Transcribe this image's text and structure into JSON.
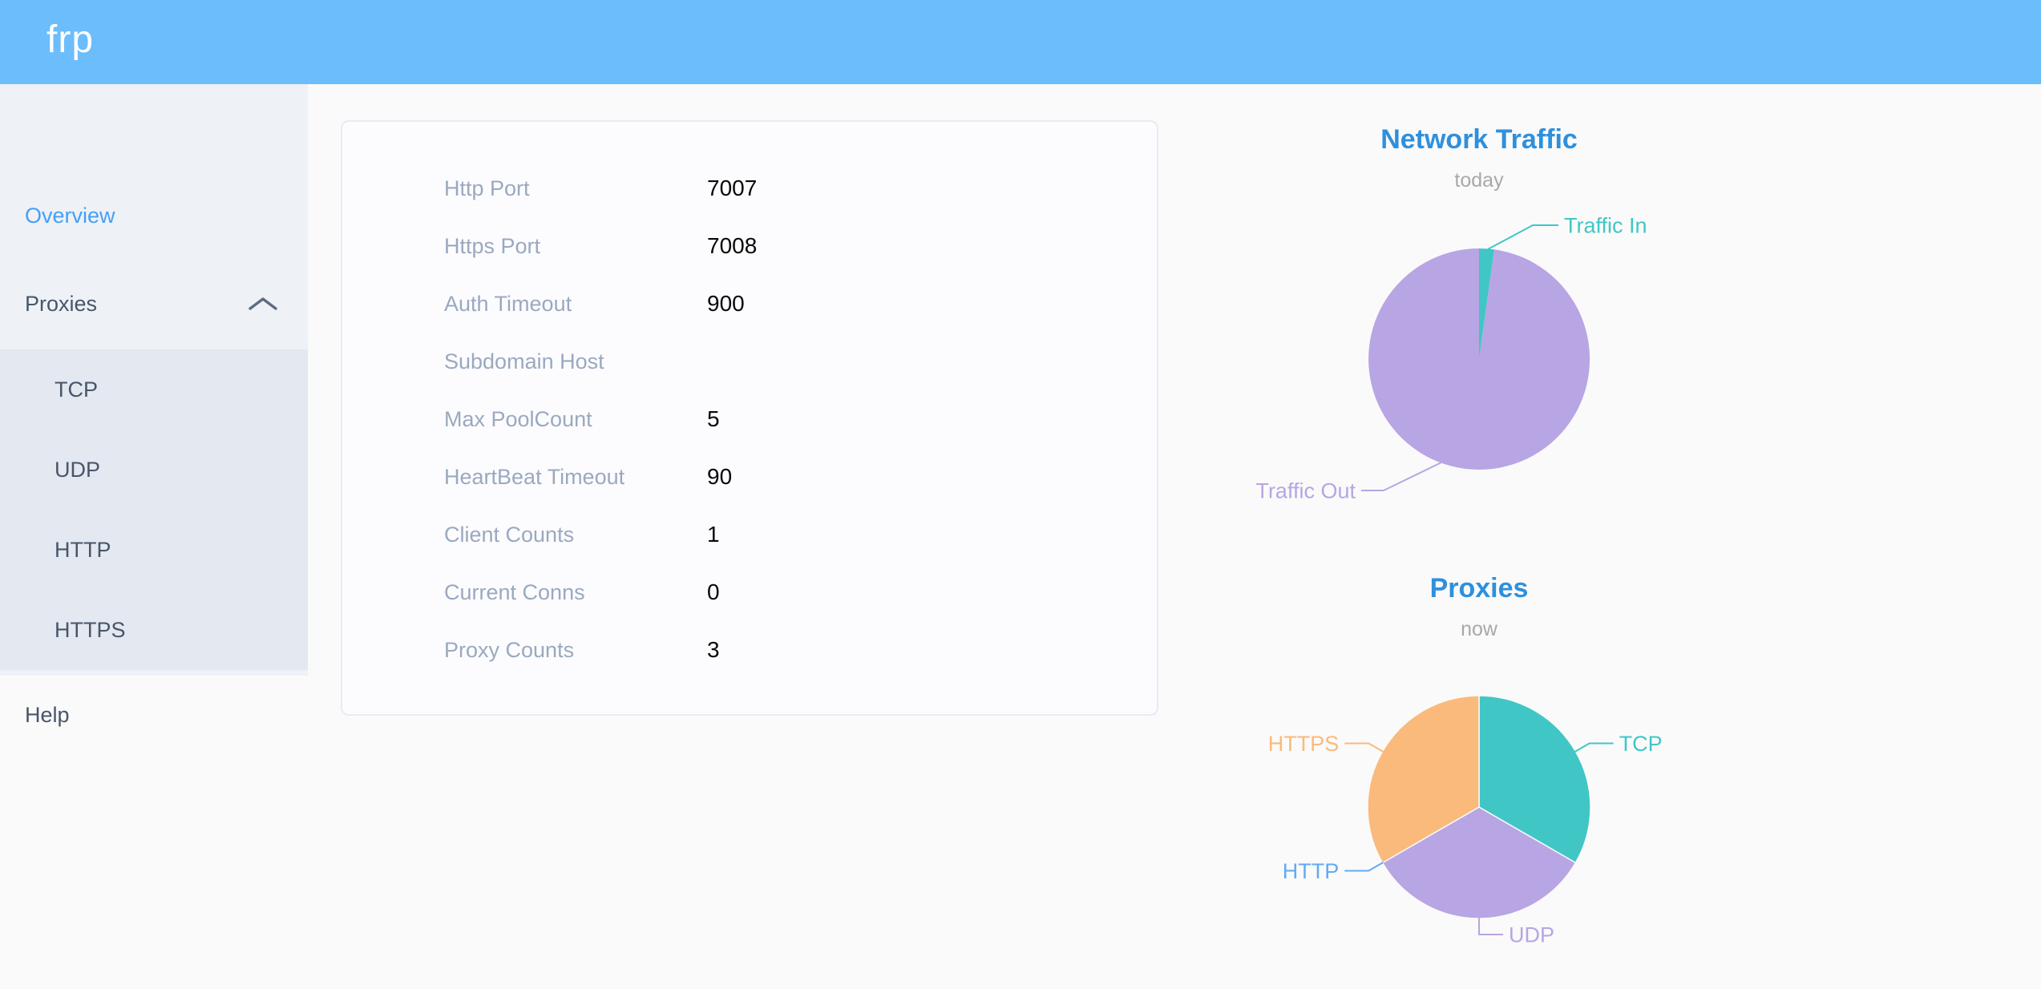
{
  "app": {
    "logo_text": "frp"
  },
  "sidebar": {
    "items": [
      {
        "label": "Overview",
        "active": true
      },
      {
        "label": "Proxies",
        "expanded": true
      },
      {
        "label": "TCP"
      },
      {
        "label": "UDP"
      },
      {
        "label": "HTTP"
      },
      {
        "label": "HTTPS"
      },
      {
        "label": "Help"
      }
    ]
  },
  "card": {
    "rows": [
      {
        "label": "Http Port",
        "value": "7007"
      },
      {
        "label": "Https Port",
        "value": "7008"
      },
      {
        "label": "Auth Timeout",
        "value": "900"
      },
      {
        "label": "Subdomain Host",
        "value": ""
      },
      {
        "label": "Max PoolCount",
        "value": "5"
      },
      {
        "label": "HeartBeat Timeout",
        "value": "90"
      },
      {
        "label": "Client Counts",
        "value": "1"
      },
      {
        "label": "Current Conns",
        "value": "0"
      },
      {
        "label": "Proxy Counts",
        "value": "3"
      }
    ]
  },
  "chart_data": [
    {
      "type": "pie",
      "title": "Network Traffic",
      "subtitle": "today",
      "legend_position": "outside-callout",
      "unit": "percent (estimated from pixels)",
      "series": [
        {
          "name": "Traffic In",
          "value": 2.2,
          "color": "#41c6c6"
        },
        {
          "name": "Traffic Out",
          "value": 97.8,
          "color": "#b8a5e3"
        }
      ]
    },
    {
      "type": "pie",
      "title": "Proxies",
      "subtitle": "now",
      "legend_position": "outside-callout",
      "unit": "proxy count",
      "series": [
        {
          "name": "TCP",
          "value": 1,
          "color": "#41c6c6"
        },
        {
          "name": "UDP",
          "value": 1,
          "color": "#b8a5e3"
        },
        {
          "name": "HTTP",
          "value": 0,
          "color": "#62aaf4"
        },
        {
          "name": "HTTPS",
          "value": 1,
          "color": "#f9ba7c"
        }
      ]
    }
  ],
  "colors": {
    "header_bg": "#6cbdfb",
    "chart_title": "#2e90dd",
    "sidebar_active": "#459ff7",
    "sidebar_text": "#475669",
    "card_label": "#9aa9bf"
  }
}
